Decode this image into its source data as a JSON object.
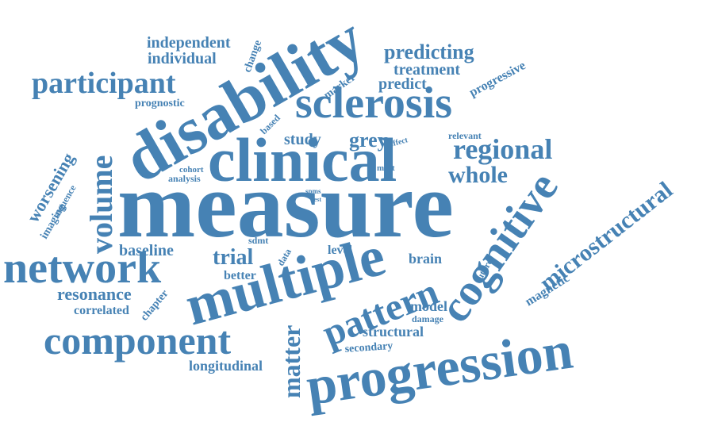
{
  "colors": {
    "word": "#4682b4",
    "background": "#ffffff"
  },
  "words": {
    "measure": "measure",
    "disability": "disability",
    "clinical": "clinical",
    "multiple": "multiple",
    "progression": "progression",
    "sclerosis": "sclerosis",
    "network": "network",
    "component": "component",
    "cognitive": "cognitive",
    "pattern": "pattern",
    "participant": "participant",
    "volume": "volume",
    "microstructural": "microstructural",
    "regional": "regional",
    "whole": "whole",
    "matter": "matter",
    "predicting": "predicting",
    "treatment": "treatment",
    "independent": "independent",
    "individual": "individual",
    "predict": "predict",
    "progressive": "progressive",
    "prognostic": "prognostic",
    "grey": "grey",
    "study": "study",
    "trial": "trial",
    "worsening": "worsening",
    "resonance": "resonance",
    "baseline": "baseline",
    "longitudinal": "longitudinal",
    "structural": "structural",
    "correlated": "correlated",
    "better": "better",
    "brain": "brain",
    "model": "model",
    "magnetic": "magnetic",
    "secondary": "secondary",
    "imaging": "imaging",
    "sequence": "sequence",
    "marker": "marker",
    "change": "change",
    "based": "based",
    "chapter": "chapter",
    "data": "data",
    "level": "level",
    "future": "future",
    "damage": "damage",
    "cohort": "cohort",
    "analysis": "analysis",
    "sdmt": "sdmt",
    "effect": "effect",
    "most": "most",
    "relevant": "relevant",
    "spms": "spms",
    "test": "test"
  }
}
